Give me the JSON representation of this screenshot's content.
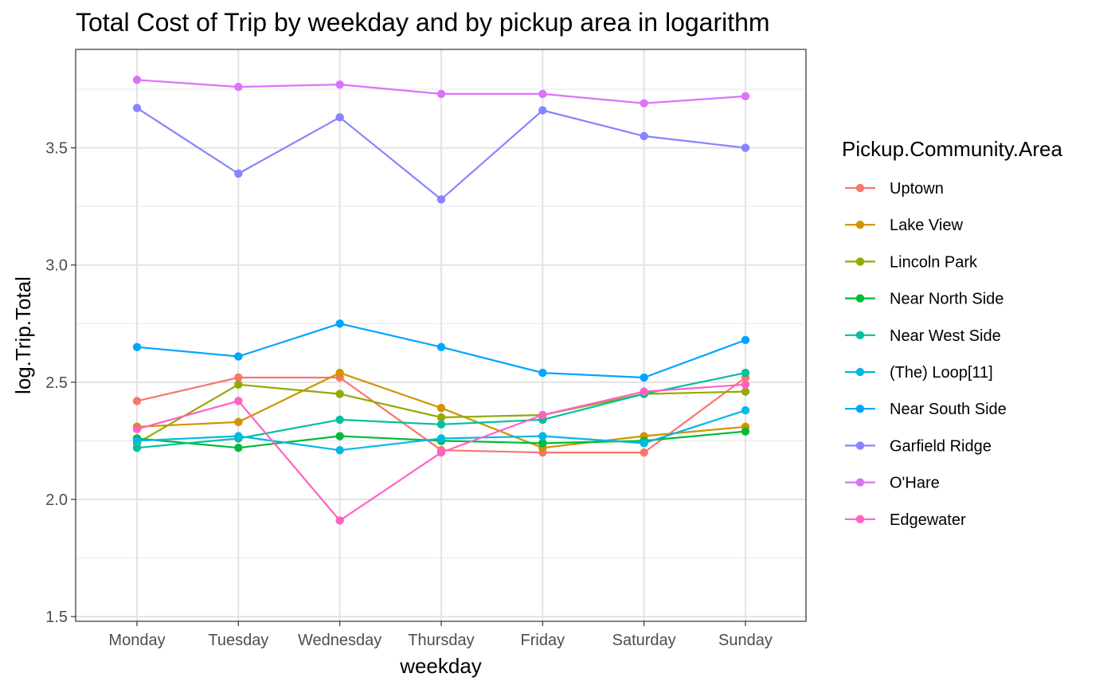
{
  "chart_data": {
    "type": "line",
    "title": "Total Cost of Trip by weekday and by pickup area in logarithm",
    "xlabel": "weekday",
    "ylabel": "log.Trip.Total",
    "categories": [
      "Monday",
      "Tuesday",
      "Wednesday",
      "Thursday",
      "Friday",
      "Saturday",
      "Sunday"
    ],
    "ylim": [
      1.48,
      3.92
    ],
    "yticks": [
      1.5,
      2.0,
      2.5,
      3.0,
      3.5
    ],
    "yticks_labels": [
      "1.5",
      "2.0",
      "2.5",
      "3.0",
      "3.5"
    ],
    "grid": true,
    "legend": {
      "title": "Pickup.Community.Area",
      "position": "right"
    },
    "series": [
      {
        "name": "Uptown",
        "color": "#F8766D",
        "values": [
          2.42,
          2.52,
          2.52,
          2.21,
          2.2,
          2.2,
          2.52
        ]
      },
      {
        "name": "Lake View",
        "color": "#D39200",
        "values": [
          2.31,
          2.33,
          2.54,
          2.39,
          2.22,
          2.27,
          2.31
        ]
      },
      {
        "name": "Lincoln Park",
        "color": "#93AA00",
        "values": [
          2.24,
          2.49,
          2.45,
          2.35,
          2.36,
          2.45,
          2.46
        ]
      },
      {
        "name": "Near North Side",
        "color": "#00BA38",
        "values": [
          2.26,
          2.22,
          2.27,
          2.25,
          2.24,
          2.25,
          2.29
        ]
      },
      {
        "name": "Near West Side",
        "color": "#00C19F",
        "values": [
          2.22,
          2.26,
          2.34,
          2.32,
          2.34,
          2.45,
          2.54
        ]
      },
      {
        "name": "(The)  Loop[11]",
        "color": "#00B9E3",
        "values": [
          2.25,
          2.27,
          2.21,
          2.26,
          2.27,
          2.24,
          2.38
        ]
      },
      {
        "name": "Near South Side",
        "color": "#00A5FF",
        "values": [
          2.65,
          2.61,
          2.75,
          2.65,
          2.54,
          2.52,
          2.68
        ]
      },
      {
        "name": "Garfield Ridge",
        "color": "#8684FF",
        "values": [
          3.67,
          3.39,
          3.63,
          3.28,
          3.66,
          3.55,
          3.5
        ]
      },
      {
        "name": "O'Hare",
        "color": "#DB72FB",
        "values": [
          3.79,
          3.76,
          3.77,
          3.73,
          3.73,
          3.69,
          3.72
        ]
      },
      {
        "name": "Edgewater",
        "color": "#FF61C3",
        "values": [
          2.3,
          2.42,
          1.91,
          2.2,
          2.36,
          2.46,
          2.49
        ]
      }
    ]
  }
}
